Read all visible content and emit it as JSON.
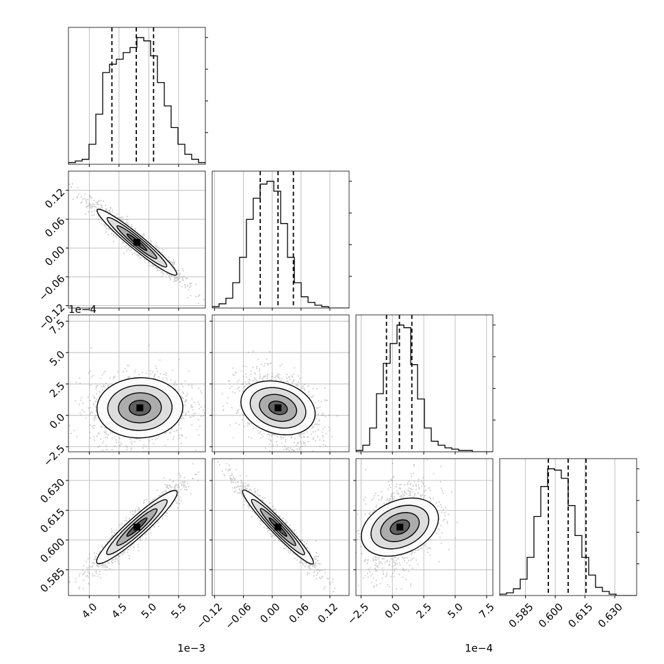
{
  "chart_data": {
    "type": "corner",
    "description_free": true,
    "params": [
      {
        "range": [
          3.65,
          5.95
        ],
        "ticks": [
          4.0,
          4.5,
          5.0,
          5.5
        ],
        "tick_labels": [
          "4.0",
          "4.5",
          "5.0",
          "5.5"
        ],
        "offset_text": "1e−3"
      },
      {
        "range": [
          -0.125,
          0.16
        ],
        "ticks": [
          -0.12,
          -0.06,
          0.0,
          0.06,
          0.12
        ],
        "tick_labels": [
          "−0.12",
          "−0.06",
          "0.00",
          "0.06",
          "0.12"
        ],
        "offset_text": ""
      },
      {
        "range": [
          -2.9,
          8.0
        ],
        "ticks": [
          -2.5,
          0.0,
          2.5,
          5.0,
          7.5
        ],
        "tick_labels": [
          "−2.5",
          "0.0",
          "2.5",
          "5.0",
          "7.5"
        ],
        "offset_text": "1e−4"
      },
      {
        "range": [
          0.572,
          0.641
        ],
        "ticks": [
          0.585,
          0.6,
          0.615,
          0.63
        ],
        "tick_labels": [
          "0.585",
          "0.600",
          "0.615",
          "0.630"
        ],
        "offset_text": ""
      }
    ],
    "histograms": [
      {
        "edges_start": 3.65,
        "bin_width": 0.115,
        "counts": [
          1,
          2,
          3,
          12,
          30,
          55,
          60,
          63,
          67,
          70,
          76,
          74,
          65,
          49,
          35,
          22,
          12,
          6,
          3,
          1
        ],
        "quantiles": [
          4.38,
          4.79,
          5.08
        ]
      },
      {
        "edges_start": -0.125,
        "bin_width": 0.01425,
        "counts": [
          1,
          3,
          7,
          18,
          36,
          63,
          78,
          88,
          90,
          83,
          60,
          36,
          18,
          8,
          4,
          2,
          1,
          0,
          0,
          0
        ],
        "quantiles": [
          -0.025,
          0.012,
          0.044
        ]
      },
      {
        "edges_start": -2.9,
        "bin_width": 0.545,
        "counts": [
          1,
          5,
          18,
          44,
          67,
          82,
          96,
          94,
          66,
          40,
          18,
          8,
          5,
          3,
          2,
          1,
          1,
          0,
          0,
          0
        ],
        "quantiles": [
          -0.47,
          0.56,
          1.55
        ]
      },
      {
        "edges_start": 0.572,
        "bin_width": 0.00345,
        "counts": [
          1,
          2,
          5,
          12,
          28,
          58,
          80,
          93,
          92,
          86,
          66,
          44,
          28,
          15,
          6,
          3,
          1,
          0,
          0,
          0
        ],
        "quantiles": [
          0.5965,
          0.6065,
          0.6155
        ]
      }
    ],
    "pairs": [
      {
        "row": 1,
        "col": 0,
        "mean": [
          4.8,
          0.012
        ],
        "sd": [
          0.33,
          0.035
        ],
        "corr": -0.96
      },
      {
        "row": 2,
        "col": 0,
        "mean": [
          4.85,
          0.6
        ],
        "sd": [
          0.36,
          1.2
        ],
        "corr": 0.05
      },
      {
        "row": 2,
        "col": 1,
        "mean": [
          0.012,
          0.6
        ],
        "sd": [
          0.036,
          1.2
        ],
        "corr": -0.35
      },
      {
        "row": 3,
        "col": 0,
        "mean": [
          4.8,
          0.6065
        ],
        "sd": [
          0.33,
          0.0095
        ],
        "corr": 0.94
      },
      {
        "row": 3,
        "col": 1,
        "mean": [
          0.012,
          0.6065
        ],
        "sd": [
          0.036,
          0.0095
        ],
        "corr": -0.96
      },
      {
        "row": 3,
        "col": 2,
        "mean": [
          0.6,
          0.6065
        ],
        "sd": [
          1.2,
          0.0095
        ],
        "corr": 0.35
      }
    ],
    "contour_levels_sigma": [
      0.5,
      1.0,
      1.5,
      2.0
    ],
    "grid": true,
    "colors": {
      "line": "#000000",
      "grid": "#b0b0b0",
      "scatter": "#7f7f7f",
      "quantile": "#000000"
    }
  }
}
